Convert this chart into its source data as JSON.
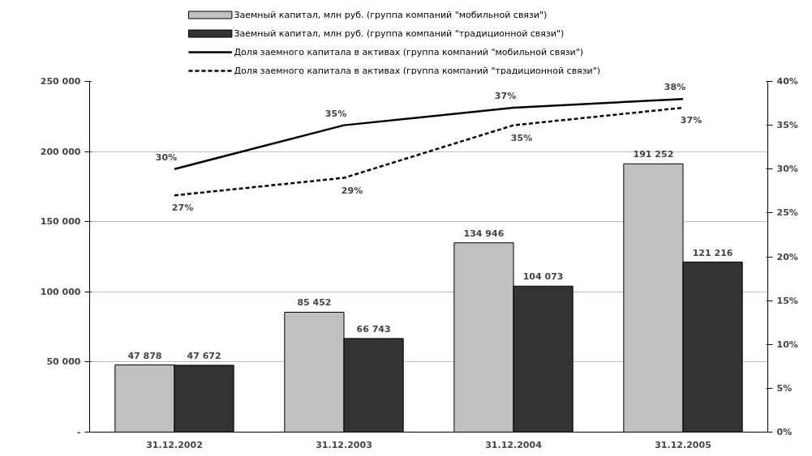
{
  "chart_data": {
    "type": "bar",
    "categories": [
      "31.12.2002",
      "31.12.2003",
      "31.12.2004",
      "31.12.2005"
    ],
    "series": [
      {
        "name": "Заемный капитал, млн  руб. (группа компаний \"мобильной связи\")",
        "color": "#c0c0c0",
        "values": [
          47878,
          85452,
          134946,
          191252
        ],
        "value_labels": [
          "47 878",
          "85 452",
          "134 946",
          "191 252"
        ]
      },
      {
        "name": "Заемный капитал, млн  руб. (группа компаний \"традиционной связи\")",
        "color": "#333333",
        "values": [
          47672,
          66743,
          104073,
          121216
        ],
        "value_labels": [
          "47 672",
          "66 743",
          "104 073",
          "121 216"
        ]
      },
      {
        "name": "Доля заемного капитала в активах (группа компаний \"мобильной связи\")",
        "type": "line",
        "axis": "y2",
        "line_style": "solid",
        "color": "#000000",
        "values": [
          30,
          35,
          37,
          38
        ],
        "value_labels": [
          "30%",
          "35%",
          "37%",
          "38%"
        ]
      },
      {
        "name": "Доля заемного капитала в активах (группа компаний \"традиционной связи\")",
        "type": "line",
        "axis": "y2",
        "line_style": "dashed",
        "color": "#000000",
        "values": [
          27,
          29,
          35,
          37
        ],
        "value_labels": [
          "27%",
          "29%",
          "35%",
          "37%"
        ]
      }
    ],
    "ylim": [
      0,
      250000
    ],
    "yticks": [
      {
        "value": 0,
        "label": "-"
      },
      {
        "value": 50000,
        "label": "50 000"
      },
      {
        "value": 100000,
        "label": "100 000"
      },
      {
        "value": 150000,
        "label": "150 000"
      },
      {
        "value": 200000,
        "label": "200 000"
      },
      {
        "value": 250000,
        "label": "250 000"
      }
    ],
    "y2lim": [
      0,
      40
    ],
    "y2ticks": [
      {
        "value": 0,
        "label": "0%"
      },
      {
        "value": 5,
        "label": "5%"
      },
      {
        "value": 10,
        "label": "10%"
      },
      {
        "value": 15,
        "label": "15%"
      },
      {
        "value": 20,
        "label": "20%"
      },
      {
        "value": 25,
        "label": "25%"
      },
      {
        "value": 30,
        "label": "30%"
      },
      {
        "value": 35,
        "label": "35%"
      },
      {
        "value": 40,
        "label": "40%"
      }
    ],
    "grid": "y",
    "legend": "top"
  }
}
